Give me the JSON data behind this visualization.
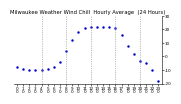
{
  "title": "Milwaukee Weather Wind Chill  Hourly Average  (24 Hours)",
  "hours": [
    0,
    1,
    2,
    3,
    4,
    5,
    6,
    7,
    8,
    9,
    10,
    11,
    12,
    13,
    14,
    15,
    16,
    17,
    18,
    19,
    20,
    21,
    22,
    23
  ],
  "wind_chill": [
    -8,
    -9,
    -10,
    -10,
    -10,
    -9,
    -8,
    -4,
    4,
    12,
    18,
    21,
    22,
    22,
    22,
    22,
    21,
    16,
    8,
    2,
    -3,
    -5,
    -10,
    -18
  ],
  "line_color": "#0000cc",
  "bg_color": "#ffffff",
  "grid_color": "#888888",
  "grid_positions": [
    4,
    8,
    12,
    16,
    20
  ],
  "ylim_min": -20,
  "ylim_max": 30,
  "title_fontsize": 3.8,
  "tick_fontsize": 3.0,
  "marker_size": 1.5,
  "ytick_values": [
    30,
    20,
    10,
    0,
    -10,
    -20
  ],
  "ytick_labels": [
    "30",
    "20",
    "10",
    "0",
    "-10",
    "-20"
  ],
  "xtick_top_labels": [
    "0",
    "1",
    "2",
    "3",
    "4",
    "5",
    "6",
    "7",
    "8",
    "9",
    "10",
    "11",
    "12",
    "13",
    "14",
    "15",
    "16",
    "17",
    "18",
    "19",
    "20",
    "21",
    "22",
    "23"
  ],
  "xtick_bot_labels": [
    "0",
    "0",
    "0",
    "0",
    "0",
    "0",
    "0",
    "0",
    "0",
    "0",
    "0",
    "0",
    "0",
    "0",
    "0",
    "0",
    "0",
    "0",
    "0",
    "0",
    "0",
    "0",
    "0",
    "0"
  ]
}
